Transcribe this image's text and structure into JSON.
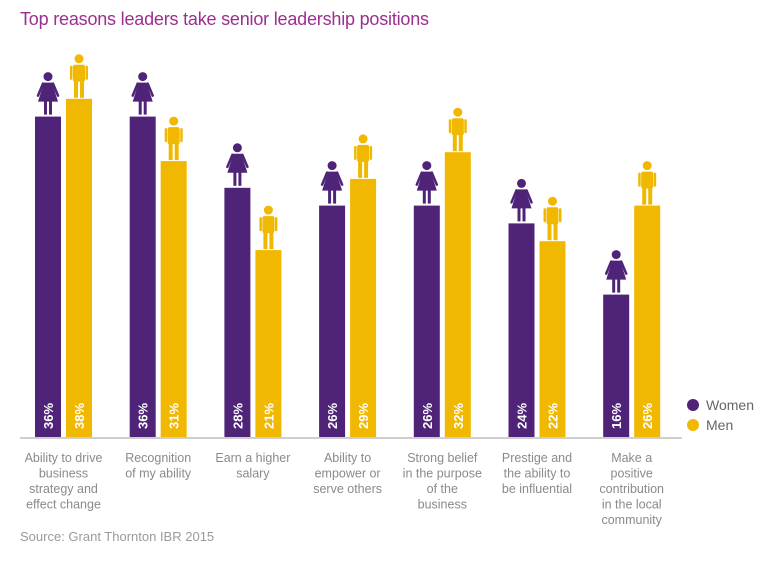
{
  "chart_data": {
    "type": "bar",
    "title": "Top reasons leaders take senior leadership positions",
    "source": "Source: Grant Thornton IBR 2015",
    "categories": [
      [
        "Ability to drive",
        "business",
        "strategy and",
        "effect change"
      ],
      [
        "Recognition",
        "of my ability"
      ],
      [
        "Earn a higher",
        "salary"
      ],
      [
        "Ability to",
        "empower or",
        "serve others"
      ],
      [
        "Strong belief",
        "in the purpose",
        "of the",
        "business"
      ],
      [
        "Prestige and",
        "the ability to",
        "be influential"
      ],
      [
        "Make a",
        "positive",
        "contribution",
        "in the local",
        "community"
      ]
    ],
    "series": [
      {
        "name": "Women",
        "color": "#4e2378",
        "icon": "woman-icon",
        "values": [
          36,
          36,
          28,
          26,
          26,
          24,
          16
        ],
        "labels": [
          "36%",
          "36%",
          "28%",
          "26%",
          "26%",
          "24%",
          "16%"
        ]
      },
      {
        "name": "Men",
        "color": "#f0b800",
        "icon": "man-icon",
        "values": [
          38,
          31,
          21,
          29,
          32,
          22,
          26
        ],
        "labels": [
          "38%",
          "31%",
          "21%",
          "29%",
          "32%",
          "22%",
          "26%"
        ]
      }
    ],
    "ylim": [
      0,
      49
    ],
    "grid": false,
    "legend": "right"
  }
}
